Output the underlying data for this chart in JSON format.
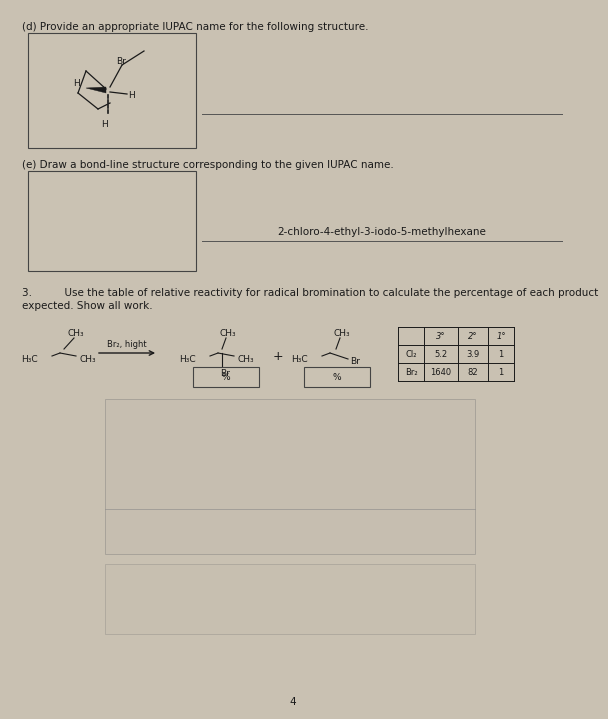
{
  "bg_color": "#c9c1b2",
  "box_bg": "#cac2b3",
  "title_d": "(d) Provide an appropriate IUPAC name for the following structure.",
  "title_e": "(e) Draw a bond-line structure corresponding to the given IUPAC name.",
  "iupac_name": "2-chloro-4-ethyl-3-iodo-5-methylhexane",
  "q3_line1": "3.          Use the table of relative reactivity for radical bromination to calculate the percentage of each product",
  "q3_line2": "expected. Show all work.",
  "reaction_reagent": "Br₂, hight",
  "plus_sign": "+",
  "percent_sign": "%",
  "table_headers": [
    "",
    "3°",
    "2°",
    "1°"
  ],
  "table_row1": [
    "Cl₂",
    "5.2",
    "3.9",
    "1"
  ],
  "table_row2": [
    "Br₂",
    "1640",
    "82",
    "1"
  ],
  "page_number": "4",
  "text_color": "#1a1a1a",
  "line_color": "#555555"
}
